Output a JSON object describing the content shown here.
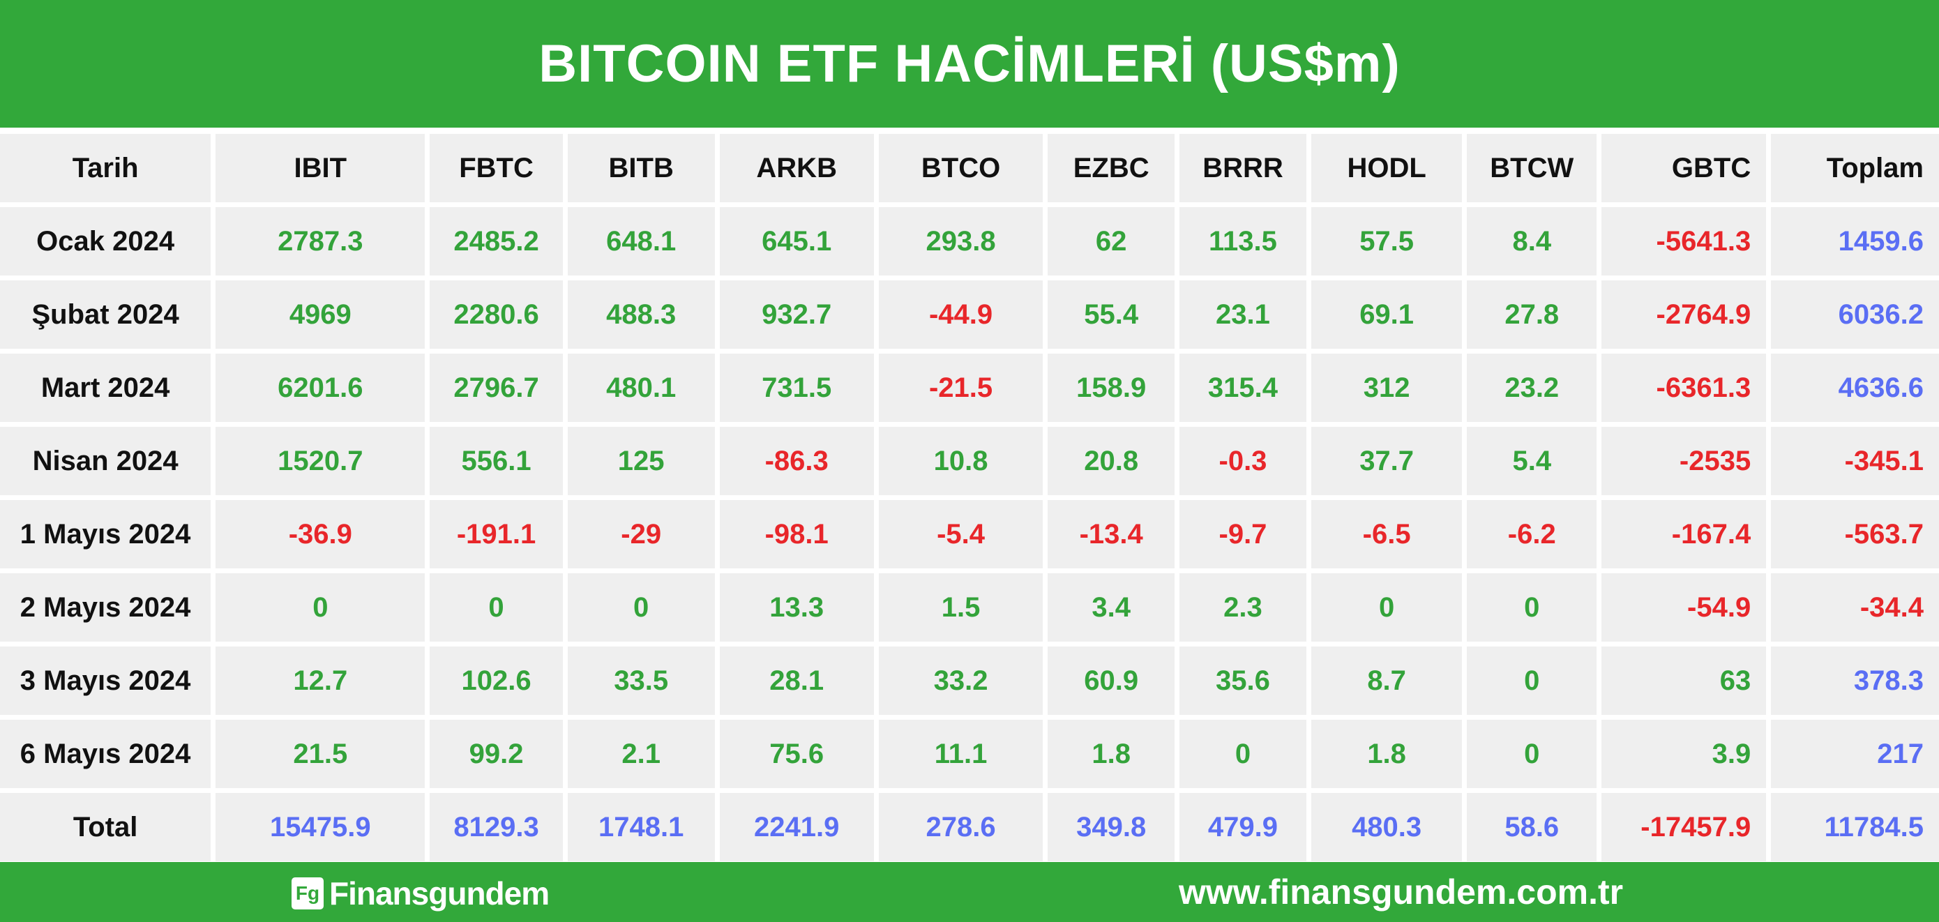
{
  "title": "BITCOIN ETF HACİMLERİ (US$m)",
  "colors": {
    "brand_green": "#32a83a",
    "positive": "#33a33a",
    "negative": "#e8262a",
    "total": "#5a6ef4",
    "cell_bg": "#efefef"
  },
  "columns": [
    "Tarih",
    "IBIT",
    "FBTC",
    "BITB",
    "ARKB",
    "BTCO",
    "EZBC",
    "BRRR",
    "HODL",
    "BTCW",
    "GBTC",
    "Toplam"
  ],
  "rows": [
    {
      "label": "Ocak 2024",
      "values": [
        "2787.3",
        "2485.2",
        "648.1",
        "645.1",
        "293.8",
        "62",
        "113.5",
        "57.5",
        "8.4",
        "-5641.3",
        "1459.6"
      ]
    },
    {
      "label": "Şubat 2024",
      "values": [
        "4969",
        "2280.6",
        "488.3",
        "932.7",
        "-44.9",
        "55.4",
        "23.1",
        "69.1",
        "27.8",
        "-2764.9",
        "6036.2"
      ]
    },
    {
      "label": "Mart 2024",
      "values": [
        "6201.6",
        "2796.7",
        "480.1",
        "731.5",
        "-21.5",
        "158.9",
        "315.4",
        "312",
        "23.2",
        "-6361.3",
        "4636.6"
      ]
    },
    {
      "label": "Nisan 2024",
      "values": [
        "1520.7",
        "556.1",
        "125",
        "-86.3",
        "10.8",
        "20.8",
        "-0.3",
        "37.7",
        "5.4",
        "-2535",
        "-345.1"
      ]
    },
    {
      "label": "1 Mayıs 2024",
      "values": [
        "-36.9",
        "-191.1",
        "-29",
        "-98.1",
        "-5.4",
        "-13.4",
        "-9.7",
        "-6.5",
        "-6.2",
        "-167.4",
        "-563.7"
      ]
    },
    {
      "label": "2 Mayıs 2024",
      "values": [
        "0",
        "0",
        "0",
        "13.3",
        "1.5",
        "3.4",
        "2.3",
        "0",
        "0",
        "-54.9",
        "-34.4"
      ]
    },
    {
      "label": "3 Mayıs 2024",
      "values": [
        "12.7",
        "102.6",
        "33.5",
        "28.1",
        "33.2",
        "60.9",
        "35.6",
        "8.7",
        "0",
        "63",
        "378.3"
      ]
    },
    {
      "label": "6 Mayıs 2024",
      "values": [
        "21.5",
        "99.2",
        "2.1",
        "75.6",
        "11.1",
        "1.8",
        "0",
        "1.8",
        "0",
        "3.9",
        "217"
      ]
    }
  ],
  "total_row": {
    "label": "Total",
    "values": [
      "15475.9",
      "8129.3",
      "1748.1",
      "2241.9",
      "278.6",
      "349.8",
      "479.9",
      "480.3",
      "58.6",
      "-17457.9",
      "11784.5"
    ]
  },
  "footer": {
    "logo_mark": "Fg",
    "logo_text": "Finansgundem",
    "url": "www.finansgundem.com.tr"
  }
}
